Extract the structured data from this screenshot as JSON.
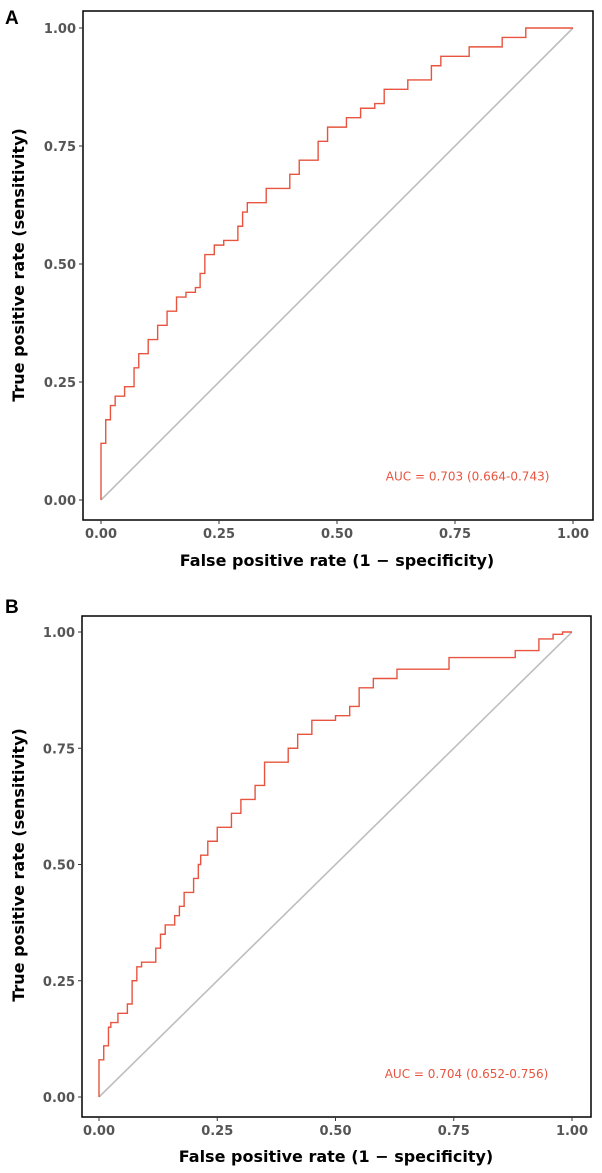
{
  "chart_data": [
    {
      "panel": "A",
      "type": "line",
      "xlabel": "False positive rate (1 − specificity)",
      "ylabel": "True positive rate (sensitivity)",
      "xlim": [
        0,
        1
      ],
      "ylim": [
        0,
        1
      ],
      "xticks": [
        "0.00",
        "0.25",
        "0.50",
        "0.75",
        "1.00"
      ],
      "yticks": [
        "0.00",
        "0.25",
        "0.50",
        "0.75",
        "1.00"
      ],
      "annotation": "AUC = 0.703 (0.664-0.743)",
      "line_color": "#E8543F",
      "diagonal_color": "#BEBEBE",
      "fpr": [
        0,
        0,
        0.01,
        0.02,
        0.03,
        0.05,
        0.07,
        0.08,
        0.1,
        0.12,
        0.14,
        0.16,
        0.18,
        0.2,
        0.21,
        0.22,
        0.24,
        0.26,
        0.29,
        0.3,
        0.31,
        0.35,
        0.4,
        0.42,
        0.46,
        0.48,
        0.52,
        0.55,
        0.58,
        0.6,
        0.65,
        0.7,
        0.72,
        0.78,
        0.85,
        0.9,
        0.95,
        1
      ],
      "tpr": [
        0,
        0.1,
        0.12,
        0.17,
        0.2,
        0.22,
        0.24,
        0.28,
        0.31,
        0.34,
        0.37,
        0.4,
        0.43,
        0.44,
        0.45,
        0.48,
        0.52,
        0.54,
        0.55,
        0.58,
        0.61,
        0.63,
        0.66,
        0.69,
        0.72,
        0.76,
        0.79,
        0.81,
        0.83,
        0.84,
        0.87,
        0.89,
        0.92,
        0.94,
        0.96,
        0.98,
        1,
        1
      ]
    },
    {
      "panel": "B",
      "type": "line",
      "xlabel": "False positive rate (1 − specificity)",
      "ylabel": "True positive rate (sensitivity)",
      "xlim": [
        0,
        1
      ],
      "ylim": [
        0,
        1
      ],
      "xticks": [
        "0.00",
        "0.25",
        "0.50",
        "0.75",
        "1.00"
      ],
      "yticks": [
        "0.00",
        "0.25",
        "0.50",
        "0.75",
        "1.00"
      ],
      "annotation": "AUC = 0.704 (0.652-0.756)",
      "line_color": "#E8543F",
      "diagonal_color": "#BEBEBE",
      "fpr": [
        0,
        0,
        0.01,
        0.02,
        0.025,
        0.04,
        0.06,
        0.07,
        0.08,
        0.09,
        0.12,
        0.13,
        0.14,
        0.16,
        0.17,
        0.18,
        0.2,
        0.21,
        0.215,
        0.23,
        0.25,
        0.28,
        0.3,
        0.33,
        0.35,
        0.37,
        0.4,
        0.42,
        0.45,
        0.5,
        0.53,
        0.55,
        0.58,
        0.63,
        0.68,
        0.74,
        0.77,
        0.88,
        0.93,
        0.96,
        0.98,
        1
      ],
      "tpr": [
        0,
        0.05,
        0.08,
        0.11,
        0.15,
        0.16,
        0.18,
        0.2,
        0.25,
        0.28,
        0.29,
        0.32,
        0.35,
        0.37,
        0.39,
        0.41,
        0.44,
        0.47,
        0.5,
        0.52,
        0.55,
        0.58,
        0.61,
        0.64,
        0.67,
        0.72,
        0.72,
        0.75,
        0.78,
        0.81,
        0.82,
        0.84,
        0.88,
        0.9,
        0.92,
        0.92,
        0.945,
        0.945,
        0.96,
        0.985,
        0.995,
        1
      ]
    }
  ]
}
